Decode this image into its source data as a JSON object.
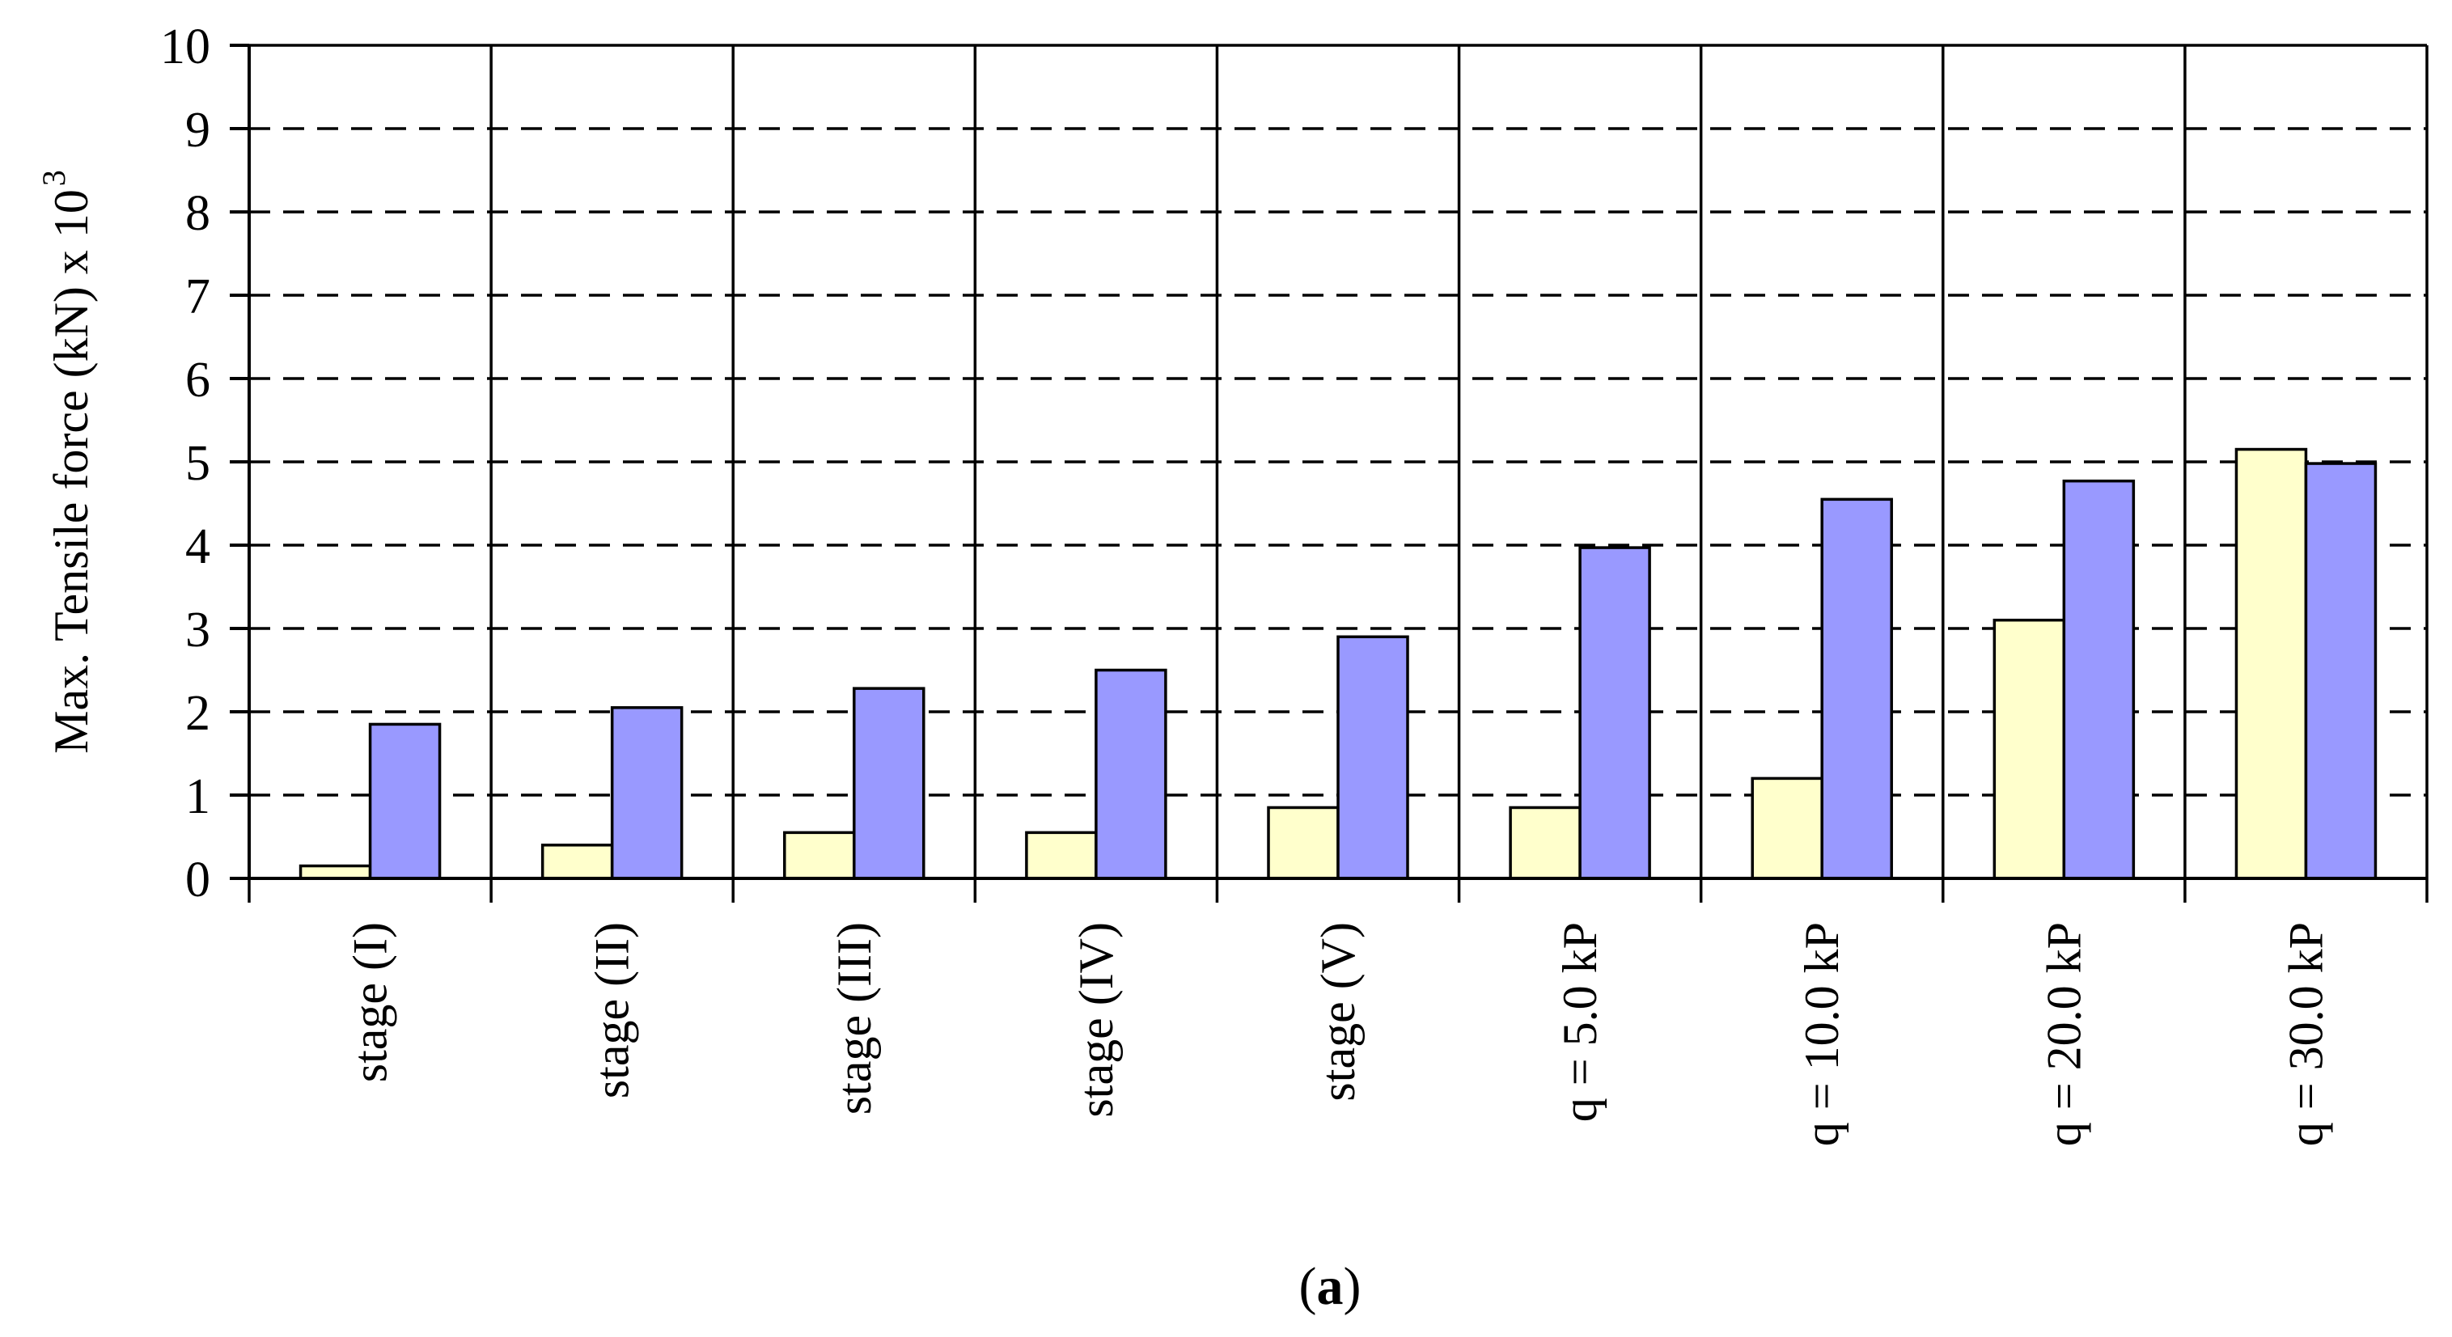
{
  "chart_data": {
    "type": "bar",
    "ylabel": "Max. Tensile force (kN) x 10",
    "ylabel_exponent": "3",
    "panel_label": {
      "open": "(",
      "letter": "a",
      "close": ")"
    },
    "ylim": [
      0,
      10
    ],
    "yticks": [
      "0",
      "1",
      "2",
      "3",
      "4",
      "5",
      "6",
      "7",
      "8",
      "9",
      "10"
    ],
    "grid": "horizontal dashed",
    "categories": [
      "stage (I)",
      "stage (II)",
      "stage (III)",
      "stage (IV)",
      "stage (V)",
      "q = 5.0 kP",
      "q = 10.0 kP",
      "q = 20.0 kP",
      "q = 30.0 kP"
    ],
    "series": [
      {
        "color": "#ffffcc",
        "values": [
          0.15,
          0.4,
          0.55,
          0.55,
          0.85,
          0.85,
          1.2,
          3.1,
          5.15
        ]
      },
      {
        "color": "#9999ff",
        "values": [
          1.85,
          2.05,
          2.28,
          2.5,
          2.9,
          3.97,
          4.55,
          4.77,
          4.98
        ]
      }
    ]
  }
}
